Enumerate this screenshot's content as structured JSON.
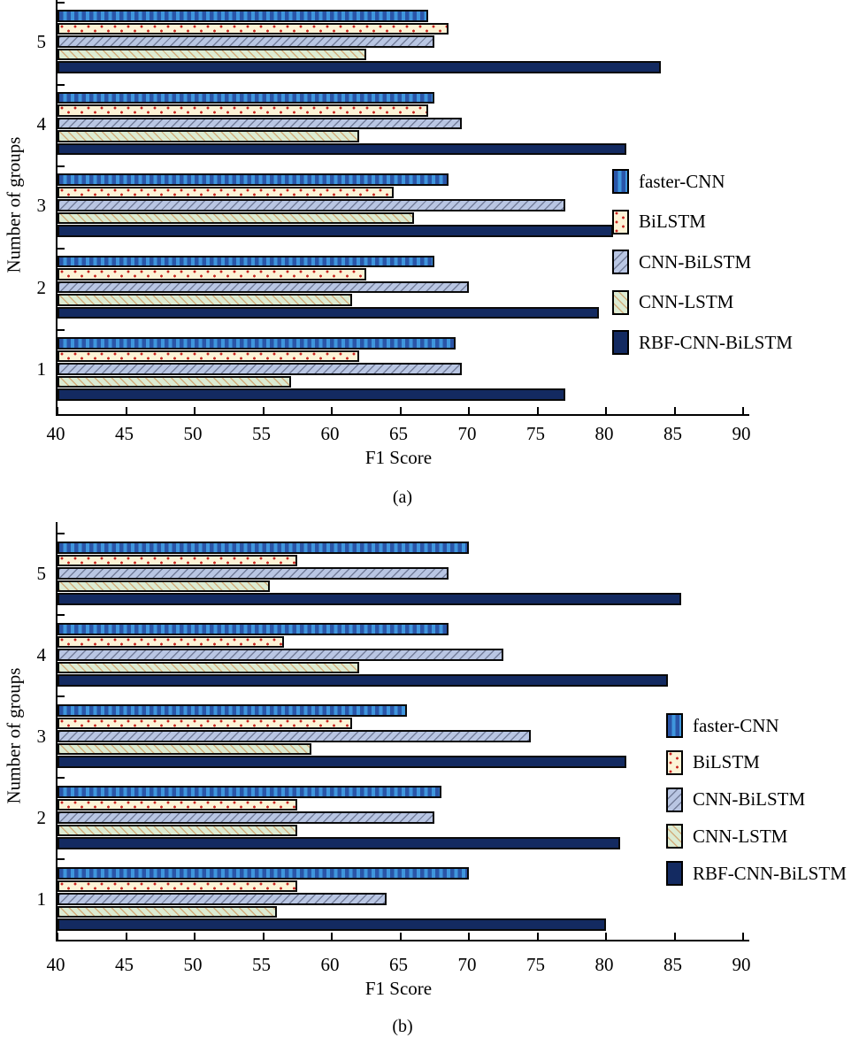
{
  "figure": {
    "caption_a": "(a)",
    "caption_b": "(b)",
    "background_color": "#ffffff",
    "text_color": "#000000"
  },
  "chart_data": [
    {
      "id": "a",
      "type": "bar",
      "orientation": "horizontal",
      "title": "(a)",
      "xlabel": "F1 Score",
      "ylabel": "Number of groups",
      "xlim": [
        40,
        90
      ],
      "xticks": [
        40,
        45,
        50,
        55,
        60,
        65,
        70,
        75,
        80,
        85,
        90
      ],
      "categories": [
        "1",
        "2",
        "3",
        "4",
        "5"
      ],
      "category_axis_order": "bottom-to-top",
      "grid": false,
      "legend_position": "right-inside",
      "series": [
        {
          "name": "faster-CNN",
          "key": "faster",
          "fill": "#2a55a8",
          "accent": "#3f96dd",
          "hatch": "vertical-stripes",
          "values": [
            69,
            67.5,
            68.5,
            67.5,
            67
          ]
        },
        {
          "name": "BiLSTM",
          "key": "bilstm",
          "fill": "#fcf3d6",
          "accent": "#c9241f",
          "hatch": "dots",
          "values": [
            62,
            62.5,
            64.5,
            67,
            68.5
          ]
        },
        {
          "name": "CNN-BiLSTM",
          "key": "cnnbilstm",
          "fill": "#b9c6e3",
          "accent": "#68728e",
          "hatch": "diagonal-forward",
          "values": [
            69.5,
            70,
            77,
            69.5,
            67.5
          ]
        },
        {
          "name": "CNN-LSTM",
          "key": "cnnlstm",
          "fill": "#dcebd2",
          "accent": "#d1a674",
          "hatch": "diagonal-back",
          "values": [
            57,
            61.5,
            66,
            62,
            62.5
          ]
        },
        {
          "name": "RBF-CNN-BiLSTM",
          "key": "rbf",
          "fill": "#132a61",
          "accent": "#132a61",
          "hatch": "solid",
          "values": [
            77,
            79.5,
            80.5,
            81.5,
            84
          ]
        }
      ]
    },
    {
      "id": "b",
      "type": "bar",
      "orientation": "horizontal",
      "title": "(b)",
      "xlabel": "F1 Score",
      "ylabel": "Number of groups",
      "xlim": [
        40,
        90
      ],
      "xticks": [
        40,
        45,
        50,
        55,
        60,
        65,
        70,
        75,
        80,
        85,
        90
      ],
      "categories": [
        "1",
        "2",
        "3",
        "4",
        "5"
      ],
      "category_axis_order": "bottom-to-top",
      "grid": false,
      "legend_position": "right-inside",
      "series": [
        {
          "name": "faster-CNN",
          "key": "faster",
          "fill": "#2a55a8",
          "accent": "#3f96dd",
          "hatch": "vertical-stripes",
          "values": [
            70,
            68,
            65.5,
            68.5,
            70
          ]
        },
        {
          "name": "BiLSTM",
          "key": "bilstm",
          "fill": "#fcf3d6",
          "accent": "#c9241f",
          "hatch": "dots",
          "values": [
            57.5,
            57.5,
            61.5,
            56.5,
            57.5
          ]
        },
        {
          "name": "CNN-BiLSTM",
          "key": "cnnbilstm",
          "fill": "#b9c6e3",
          "accent": "#68728e",
          "hatch": "diagonal-forward",
          "values": [
            64,
            67.5,
            74.5,
            72.5,
            68.5
          ]
        },
        {
          "name": "CNN-LSTM",
          "key": "cnnlstm",
          "fill": "#dcebd2",
          "accent": "#d1a674",
          "hatch": "diagonal-back",
          "values": [
            56,
            57.5,
            58.5,
            62,
            55.5
          ]
        },
        {
          "name": "RBF-CNN-BiLSTM",
          "key": "rbf",
          "fill": "#132a61",
          "accent": "#132a61",
          "hatch": "solid",
          "values": [
            80,
            81,
            81.5,
            84.5,
            85.5
          ]
        }
      ]
    }
  ]
}
